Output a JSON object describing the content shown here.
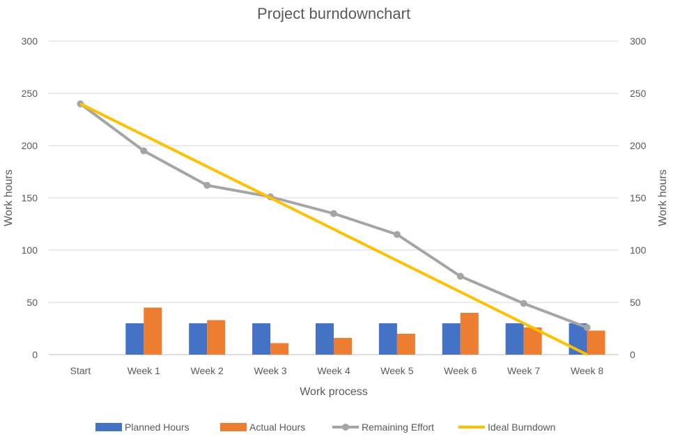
{
  "chart_data": {
    "type": "bar",
    "title": "Project burndownchart",
    "xlabel": "Work process",
    "ylabel_left": "Work hours",
    "ylabel_right": "Work hours",
    "ylim": [
      0,
      300
    ],
    "yticks": [
      "0",
      "50",
      "100",
      "150",
      "200",
      "250",
      "300"
    ],
    "categories": [
      "Start",
      "Week 1",
      "Week 2",
      "Week 3",
      "Week 4",
      "Week 5",
      "Week 6",
      "Week 7",
      "Week 8"
    ],
    "grid": true,
    "legend_position": "bottom",
    "series": [
      {
        "name": "Planned Hours",
        "kind": "bar",
        "color": "#4472C4",
        "values": [
          0,
          30,
          30,
          30,
          30,
          30,
          30,
          30,
          30
        ]
      },
      {
        "name": "Actual Hours",
        "kind": "bar",
        "color": "#ED7D31",
        "values": [
          0,
          45,
          33,
          11,
          16,
          20,
          40,
          26,
          23
        ]
      },
      {
        "name": "Remaining Effort",
        "kind": "line",
        "marker": true,
        "color": "#A5A5A5",
        "values": [
          240,
          195,
          162,
          151,
          135,
          115,
          75,
          49,
          26
        ]
      },
      {
        "name": "Ideal Burndown",
        "kind": "line",
        "marker": false,
        "color": "#FFC000",
        "values": [
          240,
          210,
          180,
          150,
          120,
          90,
          60,
          30,
          0
        ]
      }
    ]
  }
}
